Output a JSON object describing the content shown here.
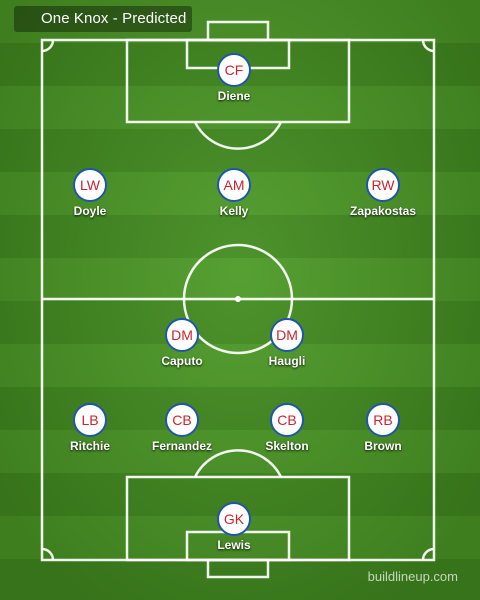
{
  "header": {
    "title": "One Knox - Predicted"
  },
  "players": [
    {
      "position": "CF",
      "name": "Diene"
    },
    {
      "position": "LW",
      "name": "Doyle"
    },
    {
      "position": "AM",
      "name": "Kelly"
    },
    {
      "position": "RW",
      "name": "Zapakostas"
    },
    {
      "position": "DM",
      "name": "Caputo"
    },
    {
      "position": "DM",
      "name": "Haugli"
    },
    {
      "position": "LB",
      "name": "Ritchie"
    },
    {
      "position": "CB",
      "name": "Fernandez"
    },
    {
      "position": "CB",
      "name": "Skelton"
    },
    {
      "position": "RB",
      "name": "Brown"
    },
    {
      "position": "GK",
      "name": "Lewis"
    }
  ],
  "footer": {
    "watermark": "buildlineup.com"
  },
  "colors": {
    "pitch_light": "#4c9a26",
    "pitch_dark": "#428c1f",
    "line": "#ffffff",
    "badge_border": "#1f56a8",
    "badge_text": "#c8262c"
  }
}
